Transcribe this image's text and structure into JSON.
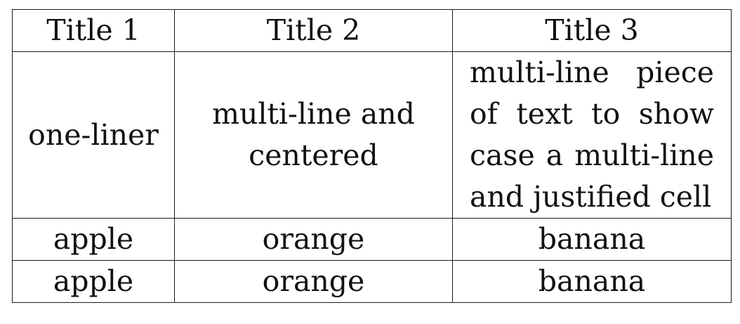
{
  "table": {
    "headers": [
      "Title 1",
      "Title 2",
      "Title 3"
    ],
    "multi_row": {
      "col1": "one-liner",
      "col2_lines": [
        "multi-line and",
        "centered"
      ],
      "col3_lines": [
        "multi-line piece",
        "of text to show",
        "case a multi-line",
        "and justified cell"
      ]
    },
    "rows": [
      [
        "apple",
        "orange",
        "banana"
      ],
      [
        "apple",
        "orange",
        "banana"
      ]
    ]
  }
}
